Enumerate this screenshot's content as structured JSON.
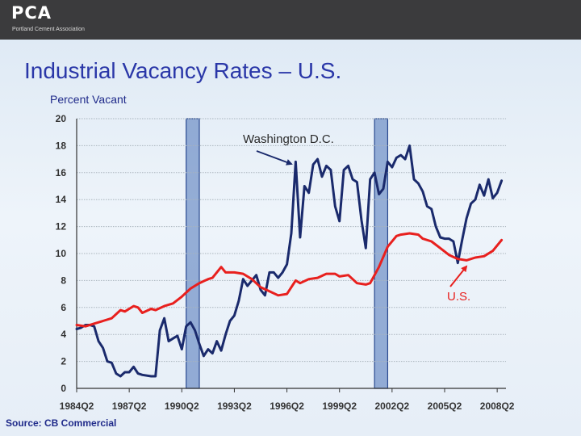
{
  "header": {
    "logo_text": "PCA",
    "logo_subtext": "Portland Cement Association"
  },
  "slide": {
    "title": "Industrial Vacancy Rates – U.S.",
    "source": "Source: CB Commercial"
  },
  "colors": {
    "dc_series": "#1a2a6c",
    "us_series": "#e8201e",
    "band_fill": "#4a72b8",
    "title": "#2a37a8"
  },
  "chart_data": {
    "type": "line",
    "ylabel": "Percent Vacant",
    "ylim": [
      0,
      20
    ],
    "yticks": [
      "0",
      "2",
      "4",
      "6",
      "8",
      "10",
      "12",
      "14",
      "16",
      "18",
      "20"
    ],
    "xlim": [
      1984.25,
      2008.75
    ],
    "xticks": [
      "1984Q2",
      "1987Q2",
      "1990Q2",
      "1993Q2",
      "1996Q2",
      "1999Q2",
      "2002Q2",
      "2005Q2",
      "2008Q2"
    ],
    "grid": true,
    "recession_bands": [
      [
        1990.5,
        1991.25
      ],
      [
        2001.25,
        2002.0
      ]
    ],
    "annotations": [
      {
        "text": "Washington D.C.",
        "series": "Washington D.C."
      },
      {
        "text": "U.S.",
        "series": "U.S."
      }
    ],
    "series": [
      {
        "name": "Washington D.C.",
        "color": "#1a2a6c",
        "points": [
          [
            1984.25,
            4.4
          ],
          [
            1984.5,
            4.5
          ],
          [
            1984.75,
            4.7
          ],
          [
            1985.0,
            4.7
          ],
          [
            1985.25,
            4.6
          ],
          [
            1985.5,
            3.5
          ],
          [
            1985.75,
            3.0
          ],
          [
            1986.0,
            2.0
          ],
          [
            1986.25,
            1.9
          ],
          [
            1986.5,
            1.1
          ],
          [
            1986.75,
            0.9
          ],
          [
            1987.0,
            1.2
          ],
          [
            1987.25,
            1.2
          ],
          [
            1987.5,
            1.6
          ],
          [
            1987.75,
            1.1
          ],
          [
            1988.0,
            1.0
          ],
          [
            1988.5,
            0.9
          ],
          [
            1988.75,
            0.9
          ],
          [
            1989.0,
            4.3
          ],
          [
            1989.25,
            5.2
          ],
          [
            1989.5,
            3.5
          ],
          [
            1989.75,
            3.7
          ],
          [
            1990.0,
            3.9
          ],
          [
            1990.25,
            2.9
          ],
          [
            1990.5,
            4.6
          ],
          [
            1990.75,
            4.9
          ],
          [
            1991.0,
            4.3
          ],
          [
            1991.25,
            3.3
          ],
          [
            1991.5,
            2.4
          ],
          [
            1991.75,
            2.9
          ],
          [
            1992.0,
            2.6
          ],
          [
            1992.25,
            3.5
          ],
          [
            1992.5,
            2.8
          ],
          [
            1992.75,
            4.0
          ],
          [
            1993.0,
            5.0
          ],
          [
            1993.25,
            5.4
          ],
          [
            1993.5,
            6.5
          ],
          [
            1993.75,
            8.1
          ],
          [
            1994.0,
            7.6
          ],
          [
            1994.25,
            8.0
          ],
          [
            1994.5,
            8.4
          ],
          [
            1994.75,
            7.3
          ],
          [
            1995.0,
            6.9
          ],
          [
            1995.25,
            8.6
          ],
          [
            1995.5,
            8.6
          ],
          [
            1995.75,
            8.2
          ],
          [
            1996.0,
            8.6
          ],
          [
            1996.25,
            9.2
          ],
          [
            1996.5,
            11.5
          ],
          [
            1996.75,
            16.8
          ],
          [
            1997.0,
            11.2
          ],
          [
            1997.25,
            15.0
          ],
          [
            1997.5,
            14.5
          ],
          [
            1997.75,
            16.6
          ],
          [
            1998.0,
            17.0
          ],
          [
            1998.25,
            15.7
          ],
          [
            1998.5,
            16.5
          ],
          [
            1998.75,
            16.2
          ],
          [
            1999.0,
            13.5
          ],
          [
            1999.25,
            12.4
          ],
          [
            1999.5,
            16.2
          ],
          [
            1999.75,
            16.5
          ],
          [
            2000.0,
            15.5
          ],
          [
            2000.25,
            15.3
          ],
          [
            2000.5,
            12.5
          ],
          [
            2000.75,
            10.4
          ],
          [
            2001.0,
            15.5
          ],
          [
            2001.25,
            16.0
          ],
          [
            2001.5,
            14.4
          ],
          [
            2001.75,
            14.8
          ],
          [
            2002.0,
            16.8
          ],
          [
            2002.25,
            16.4
          ],
          [
            2002.5,
            17.1
          ],
          [
            2002.75,
            17.3
          ],
          [
            2003.0,
            17.0
          ],
          [
            2003.25,
            18.0
          ],
          [
            2003.5,
            15.5
          ],
          [
            2003.75,
            15.2
          ],
          [
            2004.0,
            14.6
          ],
          [
            2004.25,
            13.5
          ],
          [
            2004.5,
            13.3
          ],
          [
            2004.75,
            12.0
          ],
          [
            2005.0,
            11.2
          ],
          [
            2005.25,
            11.1
          ],
          [
            2005.5,
            11.1
          ],
          [
            2005.75,
            10.9
          ],
          [
            2006.0,
            9.3
          ],
          [
            2006.25,
            11.0
          ],
          [
            2006.5,
            12.6
          ],
          [
            2006.75,
            13.7
          ],
          [
            2007.0,
            14.0
          ],
          [
            2007.25,
            15.1
          ],
          [
            2007.5,
            14.3
          ],
          [
            2007.75,
            15.5
          ],
          [
            2008.0,
            14.1
          ],
          [
            2008.25,
            14.5
          ],
          [
            2008.5,
            15.4
          ]
        ]
      },
      {
        "name": "U.S.",
        "color": "#e8201e",
        "points": [
          [
            1984.25,
            4.7
          ],
          [
            1984.75,
            4.6
          ],
          [
            1985.25,
            4.8
          ],
          [
            1985.75,
            5.0
          ],
          [
            1986.25,
            5.2
          ],
          [
            1986.75,
            5.8
          ],
          [
            1987.0,
            5.7
          ],
          [
            1987.5,
            6.1
          ],
          [
            1987.75,
            6.0
          ],
          [
            1988.0,
            5.6
          ],
          [
            1988.5,
            5.9
          ],
          [
            1988.75,
            5.8
          ],
          [
            1989.25,
            6.1
          ],
          [
            1989.75,
            6.3
          ],
          [
            1990.25,
            6.8
          ],
          [
            1990.75,
            7.4
          ],
          [
            1991.25,
            7.8
          ],
          [
            1991.75,
            8.1
          ],
          [
            1992.0,
            8.2
          ],
          [
            1992.5,
            9.0
          ],
          [
            1992.75,
            8.6
          ],
          [
            1993.25,
            8.6
          ],
          [
            1993.75,
            8.5
          ],
          [
            1994.25,
            8.1
          ],
          [
            1994.75,
            7.5
          ],
          [
            1995.25,
            7.2
          ],
          [
            1995.75,
            6.9
          ],
          [
            1996.25,
            7.0
          ],
          [
            1996.75,
            8.0
          ],
          [
            1997.0,
            7.8
          ],
          [
            1997.5,
            8.1
          ],
          [
            1998.0,
            8.2
          ],
          [
            1998.5,
            8.5
          ],
          [
            1999.0,
            8.5
          ],
          [
            1999.25,
            8.3
          ],
          [
            1999.75,
            8.4
          ],
          [
            2000.25,
            7.8
          ],
          [
            2000.75,
            7.7
          ],
          [
            2001.0,
            7.8
          ],
          [
            2001.5,
            9.0
          ],
          [
            2002.0,
            10.5
          ],
          [
            2002.5,
            11.3
          ],
          [
            2002.75,
            11.4
          ],
          [
            2003.25,
            11.5
          ],
          [
            2003.75,
            11.4
          ],
          [
            2004.0,
            11.1
          ],
          [
            2004.5,
            10.9
          ],
          [
            2005.0,
            10.4
          ],
          [
            2005.5,
            9.9
          ],
          [
            2006.0,
            9.6
          ],
          [
            2006.5,
            9.5
          ],
          [
            2007.0,
            9.7
          ],
          [
            2007.5,
            9.8
          ],
          [
            2008.0,
            10.2
          ],
          [
            2008.5,
            11.0
          ]
        ]
      }
    ]
  }
}
